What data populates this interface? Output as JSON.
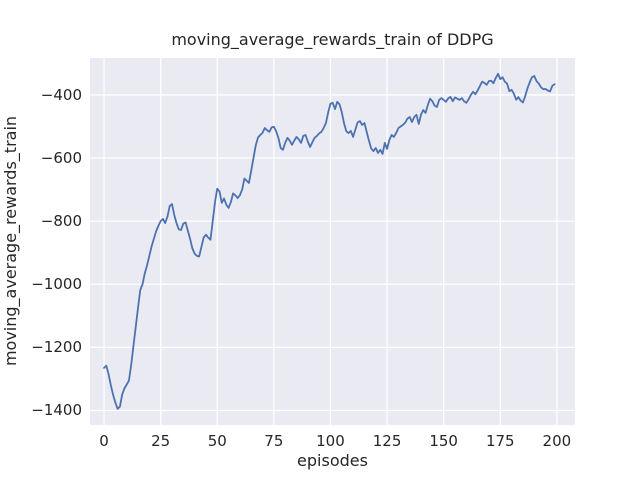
{
  "colors": {
    "figure_background": "#ffffff",
    "plot_background": "#eaeaf2",
    "grid": "#ffffff",
    "line": "#4c72b0",
    "text": "#262626"
  },
  "chart_data": {
    "type": "line",
    "title": "moving_average_rewards_train of DDPG",
    "xlabel": "episodes",
    "ylabel": "moving_average_rewards_train",
    "x_ticks": [
      0,
      25,
      50,
      75,
      100,
      125,
      150,
      175,
      200
    ],
    "y_ticks": [
      -400,
      -600,
      -800,
      -1000,
      -1200,
      -1400
    ],
    "xlim": [
      -6.2,
      208
    ],
    "ylim": [
      -1446,
      -283
    ],
    "grid": true,
    "legend_position": "none",
    "x_description": "episode index, 0 to 199, step 1",
    "series": [
      {
        "name": "DDPG moving average rewards (train)",
        "x_start": 0,
        "x_step": 1,
        "values": [
          -1265,
          -1258,
          -1285,
          -1320,
          -1350,
          -1375,
          -1395,
          -1388,
          -1350,
          -1330,
          -1318,
          -1305,
          -1255,
          -1195,
          -1135,
          -1075,
          -1018,
          -1000,
          -965,
          -940,
          -910,
          -880,
          -856,
          -832,
          -815,
          -800,
          -793,
          -806,
          -786,
          -752,
          -746,
          -780,
          -806,
          -826,
          -828,
          -808,
          -804,
          -830,
          -856,
          -886,
          -903,
          -910,
          -912,
          -882,
          -852,
          -843,
          -852,
          -859,
          -800,
          -740,
          -697,
          -706,
          -742,
          -728,
          -748,
          -758,
          -740,
          -712,
          -718,
          -727,
          -718,
          -700,
          -665,
          -672,
          -679,
          -640,
          -600,
          -560,
          -535,
          -527,
          -520,
          -505,
          -512,
          -517,
          -503,
          -501,
          -515,
          -536,
          -568,
          -574,
          -552,
          -536,
          -545,
          -558,
          -545,
          -533,
          -541,
          -552,
          -530,
          -527,
          -548,
          -565,
          -550,
          -536,
          -530,
          -522,
          -517,
          -505,
          -489,
          -455,
          -428,
          -425,
          -445,
          -422,
          -430,
          -455,
          -490,
          -515,
          -521,
          -514,
          -533,
          -510,
          -487,
          -483,
          -495,
          -489,
          -517,
          -545,
          -570,
          -578,
          -568,
          -584,
          -574,
          -587,
          -552,
          -571,
          -543,
          -527,
          -533,
          -521,
          -505,
          -500,
          -495,
          -488,
          -475,
          -470,
          -486,
          -470,
          -463,
          -492,
          -462,
          -448,
          -457,
          -432,
          -412,
          -420,
          -434,
          -438,
          -416,
          -410,
          -416,
          -422,
          -411,
          -406,
          -420,
          -408,
          -412,
          -416,
          -410,
          -420,
          -425,
          -414,
          -400,
          -390,
          -398,
          -386,
          -372,
          -358,
          -362,
          -368,
          -356,
          -355,
          -363,
          -346,
          -333,
          -350,
          -344,
          -358,
          -364,
          -388,
          -384,
          -396,
          -415,
          -407,
          -418,
          -424,
          -404,
          -379,
          -360,
          -344,
          -340,
          -356,
          -364,
          -376,
          -382,
          -381,
          -386,
          -389,
          -371,
          -366
        ]
      }
    ]
  }
}
